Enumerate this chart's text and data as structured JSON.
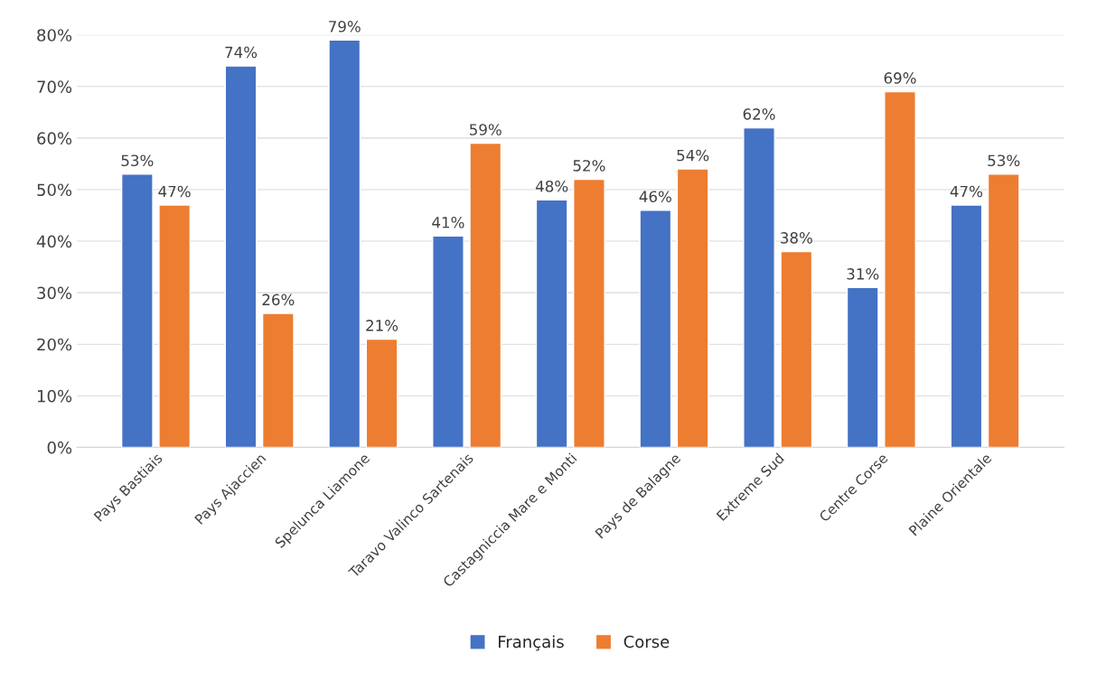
{
  "chart_data": {
    "type": "bar",
    "categories": [
      "Pays Bastiais",
      "Pays Ajaccien",
      "Spelunca Liamone",
      "Taravo Valinco Sartenais",
      "Castagniccia Mare e Monti",
      "Pays de Balagne",
      "Extreme Sud",
      "Centre Corse",
      "Plaine Orientale"
    ],
    "series": [
      {
        "name": "Français",
        "color": "#4472c4",
        "values": [
          53,
          74,
          79,
          41,
          48,
          46,
          62,
          31,
          47
        ],
        "value_labels": [
          "53%",
          "74%",
          "79%",
          "41%",
          "48%",
          "46%",
          "62%",
          "31%",
          "47%"
        ]
      },
      {
        "name": "Corse",
        "color": "#ed7d31",
        "values": [
          47,
          26,
          21,
          59,
          52,
          54,
          38,
          69,
          53
        ],
        "value_labels": [
          "47%",
          "26%",
          "21%",
          "59%",
          "52%",
          "54%",
          "38%",
          "69%",
          "53%"
        ]
      }
    ],
    "ylim": [
      0,
      80
    ],
    "yticks": [
      {
        "value": 0,
        "label": "0%"
      },
      {
        "value": 10,
        "label": "10%"
      },
      {
        "value": 20,
        "label": "20%"
      },
      {
        "value": 30,
        "label": "30%"
      },
      {
        "value": 40,
        "label": "40%"
      },
      {
        "value": 50,
        "label": "50%"
      },
      {
        "value": 60,
        "label": "60%"
      },
      {
        "value": 70,
        "label": "70%"
      },
      {
        "value": 80,
        "label": "80%"
      }
    ],
    "grid": "y",
    "legend": "bottom"
  }
}
